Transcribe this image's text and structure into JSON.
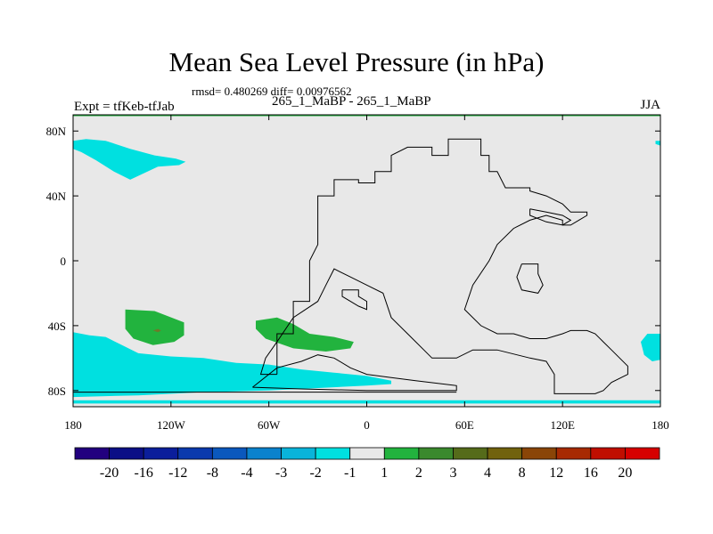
{
  "title": "Mean Sea Level Pressure (in hPa)",
  "stats": "rmsd= 0.480269 diff= 0.00976562",
  "left_label": "Expt = tfKeb-tfJab",
  "center_label": "265_1_MaBP - 265_1_MaBP",
  "right_label": "JJA",
  "map": {
    "lon_range": [
      -180,
      180
    ],
    "lat_range": [
      -90,
      90
    ],
    "background_color": "#e8e8e8",
    "x_ticks": [
      {
        "value": -180,
        "label": "180"
      },
      {
        "value": -120,
        "label": "120W"
      },
      {
        "value": -60,
        "label": "60W"
      },
      {
        "value": 0,
        "label": "0"
      },
      {
        "value": 60,
        "label": "60E"
      },
      {
        "value": 120,
        "label": "120E"
      },
      {
        "value": 180,
        "label": "180"
      }
    ],
    "y_ticks": [
      {
        "value": 80,
        "label": "80N"
      },
      {
        "value": 40,
        "label": "40N"
      },
      {
        "value": 0,
        "label": "0"
      },
      {
        "value": -40,
        "label": "40S"
      },
      {
        "value": -80,
        "label": "80S"
      }
    ],
    "regions": [
      {
        "name": "negative-anomaly-arctic-west",
        "color": "#00e0e0",
        "points": [
          [
            -180,
            74
          ],
          [
            -172,
            75
          ],
          [
            -160,
            74
          ],
          [
            -145,
            69
          ],
          [
            -130,
            65
          ],
          [
            -117,
            63
          ],
          [
            -111,
            61
          ],
          [
            -115,
            59
          ],
          [
            -128,
            58
          ],
          [
            -145,
            50
          ],
          [
            -155,
            55
          ],
          [
            -166,
            62
          ],
          [
            -175,
            67
          ],
          [
            -180,
            69
          ]
        ]
      },
      {
        "name": "negative-anomaly-arctic-east",
        "color": "#00e0e0",
        "points": [
          [
            177,
            74
          ],
          [
            180,
            74
          ],
          [
            180,
            71
          ],
          [
            177,
            72
          ]
        ]
      },
      {
        "name": "negative-anomaly-southern-ocean",
        "color": "#00e0e0",
        "points": [
          [
            -180,
            -44
          ],
          [
            -170,
            -46
          ],
          [
            -160,
            -47
          ],
          [
            -150,
            -52
          ],
          [
            -140,
            -57
          ],
          [
            -120,
            -59
          ],
          [
            -100,
            -60
          ],
          [
            -80,
            -63
          ],
          [
            -60,
            -64
          ],
          [
            -40,
            -67
          ],
          [
            -20,
            -69
          ],
          [
            0,
            -71
          ],
          [
            15,
            -74
          ],
          [
            15,
            -76
          ],
          [
            0,
            -77
          ],
          [
            -20,
            -78
          ],
          [
            -60,
            -80
          ],
          [
            -100,
            -81
          ],
          [
            -140,
            -83
          ],
          [
            -180,
            -84
          ]
        ]
      },
      {
        "name": "negative-anomaly-southern-edge",
        "color": "#00e0e0",
        "points": [
          [
            -180,
            -86
          ],
          [
            180,
            -86
          ],
          [
            180,
            -88
          ],
          [
            -180,
            -88
          ]
        ]
      },
      {
        "name": "negative-anomaly-east",
        "color": "#00e0e0",
        "points": [
          [
            180,
            -45
          ],
          [
            172,
            -45
          ],
          [
            168,
            -50
          ],
          [
            170,
            -58
          ],
          [
            175,
            -62
          ],
          [
            180,
            -61
          ]
        ]
      },
      {
        "name": "positive-anomaly-south-pacific",
        "color": "#22b33e",
        "points": [
          [
            -148,
            -30
          ],
          [
            -130,
            -31
          ],
          [
            -112,
            -38
          ],
          [
            -112,
            -46
          ],
          [
            -118,
            -50
          ],
          [
            -131,
            -52
          ],
          [
            -143,
            -48
          ],
          [
            -148,
            -42
          ]
        ]
      },
      {
        "name": "positive-anomaly-south-atlantic",
        "color": "#22b33e",
        "points": [
          [
            -68,
            -37
          ],
          [
            -55,
            -35
          ],
          [
            -45,
            -39
          ],
          [
            -35,
            -45
          ],
          [
            -20,
            -47
          ],
          [
            -8,
            -50
          ],
          [
            -10,
            -54
          ],
          [
            -25,
            -56
          ],
          [
            -45,
            -54
          ],
          [
            -62,
            -48
          ],
          [
            -68,
            -42
          ]
        ]
      },
      {
        "name": "positive-anomaly-core",
        "color": "#6d7a2a",
        "points": [
          [
            -131,
            -43
          ],
          [
            -128,
            -42
          ],
          [
            -126,
            -43
          ],
          [
            -128,
            -44
          ]
        ]
      }
    ],
    "coastlines": [
      {
        "name": "continent-a",
        "points": [
          [
            -55,
            -70
          ],
          [
            -55,
            -60
          ],
          [
            -55,
            -45
          ],
          [
            -45,
            -45
          ],
          [
            -45,
            -25
          ],
          [
            -35,
            -25
          ],
          [
            -35,
            0
          ],
          [
            -30,
            10
          ],
          [
            -30,
            40
          ],
          [
            -20,
            40
          ],
          [
            -20,
            50
          ],
          [
            -5,
            50
          ],
          [
            -5,
            48
          ],
          [
            5,
            48
          ],
          [
            5,
            55
          ],
          [
            15,
            55
          ],
          [
            15,
            65
          ],
          [
            25,
            70
          ],
          [
            40,
            70
          ],
          [
            40,
            65
          ],
          [
            50,
            65
          ],
          [
            50,
            75
          ],
          [
            70,
            75
          ],
          [
            70,
            65
          ],
          [
            75,
            65
          ],
          [
            75,
            55
          ],
          [
            80,
            55
          ],
          [
            85,
            45
          ],
          [
            100,
            45
          ],
          [
            100,
            43
          ],
          [
            110,
            40
          ],
          [
            120,
            35
          ],
          [
            125,
            30
          ],
          [
            135,
            30
          ],
          [
            135,
            28
          ],
          [
            130,
            25
          ],
          [
            125,
            22
          ],
          [
            120,
            22
          ],
          [
            120,
            25
          ],
          [
            110,
            28
          ],
          [
            100,
            25
          ],
          [
            90,
            20
          ],
          [
            80,
            10
          ],
          [
            75,
            0
          ],
          [
            65,
            -15
          ],
          [
            60,
            -30
          ],
          [
            70,
            -40
          ],
          [
            80,
            -45
          ],
          [
            90,
            -45
          ],
          [
            100,
            -48
          ],
          [
            110,
            -48
          ],
          [
            120,
            -45
          ],
          [
            125,
            -43
          ],
          [
            135,
            -43
          ],
          [
            140,
            -45
          ],
          [
            145,
            -50
          ],
          [
            150,
            -55
          ],
          [
            160,
            -65
          ],
          [
            160,
            -70
          ],
          [
            150,
            -75
          ],
          [
            145,
            -80
          ],
          [
            140,
            -82
          ],
          [
            115,
            -82
          ],
          [
            115,
            -70
          ],
          [
            110,
            -62
          ],
          [
            100,
            -60
          ],
          [
            80,
            -55
          ],
          [
            65,
            -55
          ],
          [
            55,
            -60
          ],
          [
            40,
            -60
          ],
          [
            35,
            -55
          ],
          [
            25,
            -45
          ],
          [
            15,
            -35
          ],
          [
            10,
            -20
          ],
          [
            0,
            -15
          ],
          [
            -10,
            -10
          ],
          [
            -20,
            -5
          ],
          [
            -25,
            -15
          ],
          [
            -30,
            -25
          ],
          [
            -45,
            -35
          ],
          [
            -55,
            -50
          ],
          [
            -62,
            -60
          ],
          [
            -65,
            -70
          ],
          [
            -55,
            -70
          ]
        ]
      },
      {
        "name": "antarctic-arm",
        "points": [
          [
            -70,
            -78
          ],
          [
            -55,
            -66
          ],
          [
            -40,
            -62
          ],
          [
            -30,
            -58
          ],
          [
            -20,
            -60
          ],
          [
            -10,
            -66
          ],
          [
            0,
            -70
          ],
          [
            15,
            -72
          ],
          [
            30,
            -74
          ],
          [
            55,
            -77
          ],
          [
            55,
            -80
          ],
          [
            30,
            -80
          ],
          [
            0,
            -80
          ],
          [
            -40,
            -79
          ],
          [
            -70,
            -78
          ]
        ]
      },
      {
        "name": "island-a",
        "points": [
          [
            -15,
            -18
          ],
          [
            -5,
            -18
          ],
          [
            -5,
            -22
          ],
          [
            0,
            -25
          ],
          [
            0,
            -30
          ],
          [
            -5,
            -28
          ],
          [
            -10,
            -25
          ],
          [
            -15,
            -22
          ],
          [
            -15,
            -18
          ]
        ]
      },
      {
        "name": "island-b",
        "points": [
          [
            95,
            -2
          ],
          [
            105,
            -2
          ],
          [
            105,
            -8
          ],
          [
            108,
            -15
          ],
          [
            105,
            -20
          ],
          [
            95,
            -18
          ],
          [
            92,
            -10
          ],
          [
            95,
            -2
          ]
        ]
      },
      {
        "name": "island-c",
        "points": [
          [
            100,
            32
          ],
          [
            110,
            30
          ],
          [
            120,
            28
          ],
          [
            125,
            25
          ],
          [
            120,
            22
          ],
          [
            110,
            24
          ],
          [
            100,
            28
          ],
          [
            100,
            32
          ]
        ]
      },
      {
        "name": "antarctic-line",
        "points": [
          [
            -180,
            -81
          ],
          [
            55,
            -81
          ]
        ]
      }
    ]
  },
  "colorbar": {
    "labels": [
      "-20",
      "-16",
      "-12",
      "-8",
      "-4",
      "-3",
      "-2",
      "-1",
      "1",
      "2",
      "3",
      "4",
      "8",
      "12",
      "16",
      "20"
    ],
    "colors": [
      "#22007f",
      "#0b0f86",
      "#0b1e9b",
      "#0a39ad",
      "#0a58bd",
      "#0a82cd",
      "#09b4da",
      "#00e0e0",
      "#e8e8e8",
      "#22b33e",
      "#3a892d",
      "#556b1a",
      "#71620d",
      "#8a4507",
      "#a72a02",
      "#c00e00",
      "#d60000"
    ]
  }
}
